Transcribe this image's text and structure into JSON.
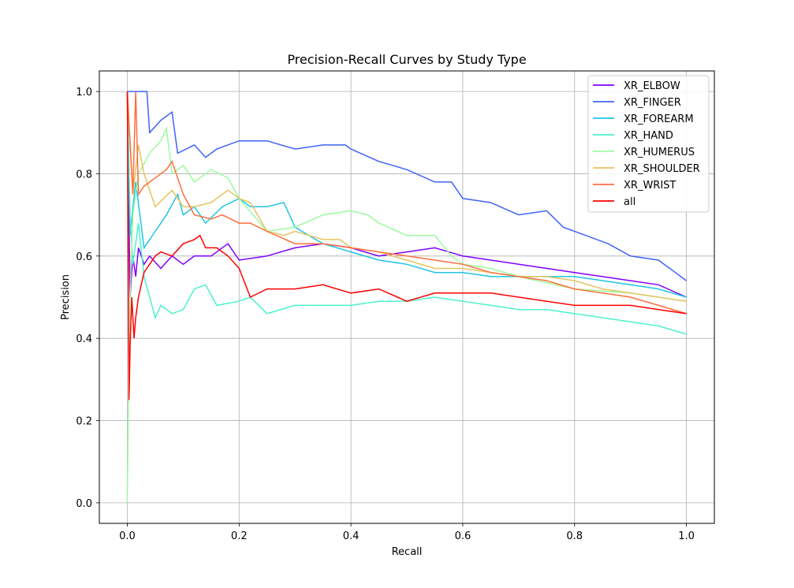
{
  "chart_data": {
    "type": "line",
    "title": "Precision-Recall Curves by Study Type",
    "xlabel": "Recall",
    "ylabel": "Precision",
    "xlim": [
      -0.05,
      1.05
    ],
    "ylim": [
      -0.05,
      1.05
    ],
    "xticks": [
      "0.0",
      "0.2",
      "0.4",
      "0.6",
      "0.8",
      "1.0"
    ],
    "yticks": [
      "0.0",
      "0.2",
      "0.4",
      "0.6",
      "0.8",
      "1.0"
    ],
    "grid": true,
    "legend_position": "top-right",
    "series": [
      {
        "name": "XR_ELBOW",
        "color": "#8000ff",
        "points": [
          [
            0.0,
            1.0
          ],
          [
            0.005,
            0.5
          ],
          [
            0.01,
            0.6
          ],
          [
            0.015,
            0.55
          ],
          [
            0.02,
            0.62
          ],
          [
            0.03,
            0.58
          ],
          [
            0.04,
            0.6
          ],
          [
            0.06,
            0.57
          ],
          [
            0.08,
            0.6
          ],
          [
            0.1,
            0.58
          ],
          [
            0.12,
            0.6
          ],
          [
            0.15,
            0.6
          ],
          [
            0.18,
            0.63
          ],
          [
            0.2,
            0.59
          ],
          [
            0.25,
            0.6
          ],
          [
            0.3,
            0.62
          ],
          [
            0.35,
            0.63
          ],
          [
            0.4,
            0.62
          ],
          [
            0.45,
            0.6
          ],
          [
            0.5,
            0.61
          ],
          [
            0.55,
            0.62
          ],
          [
            0.6,
            0.6
          ],
          [
            0.65,
            0.59
          ],
          [
            0.7,
            0.58
          ],
          [
            0.75,
            0.57
          ],
          [
            0.8,
            0.56
          ],
          [
            0.85,
            0.55
          ],
          [
            0.9,
            0.54
          ],
          [
            0.95,
            0.53
          ],
          [
            1.0,
            0.5
          ]
        ]
      },
      {
        "name": "XR_FINGER",
        "color": "#4062fa",
        "points": [
          [
            0.0,
            1.0
          ],
          [
            0.035,
            1.0
          ],
          [
            0.04,
            0.9
          ],
          [
            0.06,
            0.93
          ],
          [
            0.08,
            0.95
          ],
          [
            0.09,
            0.85
          ],
          [
            0.12,
            0.87
          ],
          [
            0.14,
            0.84
          ],
          [
            0.16,
            0.86
          ],
          [
            0.2,
            0.88
          ],
          [
            0.25,
            0.88
          ],
          [
            0.3,
            0.86
          ],
          [
            0.35,
            0.87
          ],
          [
            0.39,
            0.87
          ],
          [
            0.4,
            0.86
          ],
          [
            0.45,
            0.83
          ],
          [
            0.5,
            0.81
          ],
          [
            0.55,
            0.78
          ],
          [
            0.58,
            0.78
          ],
          [
            0.6,
            0.74
          ],
          [
            0.65,
            0.73
          ],
          [
            0.7,
            0.7
          ],
          [
            0.75,
            0.71
          ],
          [
            0.78,
            0.67
          ],
          [
            0.82,
            0.65
          ],
          [
            0.86,
            0.63
          ],
          [
            0.9,
            0.6
          ],
          [
            0.95,
            0.59
          ],
          [
            0.98,
            0.56
          ],
          [
            1.0,
            0.54
          ]
        ]
      },
      {
        "name": "XR_FOREARM",
        "color": "#1ec5e6",
        "points": [
          [
            0.0,
            1.0
          ],
          [
            0.005,
            0.65
          ],
          [
            0.015,
            0.78
          ],
          [
            0.03,
            0.62
          ],
          [
            0.05,
            0.66
          ],
          [
            0.07,
            0.7
          ],
          [
            0.09,
            0.75
          ],
          [
            0.1,
            0.7
          ],
          [
            0.12,
            0.72
          ],
          [
            0.14,
            0.68
          ],
          [
            0.17,
            0.72
          ],
          [
            0.2,
            0.74
          ],
          [
            0.22,
            0.72
          ],
          [
            0.25,
            0.72
          ],
          [
            0.28,
            0.73
          ],
          [
            0.3,
            0.67
          ],
          [
            0.35,
            0.63
          ],
          [
            0.4,
            0.61
          ],
          [
            0.45,
            0.59
          ],
          [
            0.5,
            0.58
          ],
          [
            0.55,
            0.56
          ],
          [
            0.6,
            0.56
          ],
          [
            0.65,
            0.55
          ],
          [
            0.7,
            0.55
          ],
          [
            0.75,
            0.55
          ],
          [
            0.8,
            0.55
          ],
          [
            0.85,
            0.54
          ],
          [
            0.9,
            0.53
          ],
          [
            0.95,
            0.52
          ],
          [
            1.0,
            0.5
          ]
        ]
      },
      {
        "name": "XR_HAND",
        "color": "#4cf2ce",
        "points": [
          [
            0.0,
            1.0
          ],
          [
            0.005,
            0.7
          ],
          [
            0.01,
            0.58
          ],
          [
            0.02,
            0.68
          ],
          [
            0.03,
            0.55
          ],
          [
            0.04,
            0.5
          ],
          [
            0.05,
            0.45
          ],
          [
            0.06,
            0.48
          ],
          [
            0.08,
            0.46
          ],
          [
            0.1,
            0.47
          ],
          [
            0.12,
            0.52
          ],
          [
            0.14,
            0.53
          ],
          [
            0.16,
            0.48
          ],
          [
            0.2,
            0.49
          ],
          [
            0.22,
            0.5
          ],
          [
            0.25,
            0.46
          ],
          [
            0.3,
            0.48
          ],
          [
            0.35,
            0.48
          ],
          [
            0.4,
            0.48
          ],
          [
            0.45,
            0.49
          ],
          [
            0.5,
            0.49
          ],
          [
            0.55,
            0.5
          ],
          [
            0.6,
            0.49
          ],
          [
            0.65,
            0.48
          ],
          [
            0.7,
            0.47
          ],
          [
            0.75,
            0.47
          ],
          [
            0.8,
            0.46
          ],
          [
            0.85,
            0.45
          ],
          [
            0.9,
            0.44
          ],
          [
            0.95,
            0.43
          ],
          [
            1.0,
            0.41
          ]
        ]
      },
      {
        "name": "XR_HUMERUS",
        "color": "#9cfb9f",
        "points": [
          [
            0.0,
            0.0
          ],
          [
            0.002,
            0.25
          ],
          [
            0.005,
            0.5
          ],
          [
            0.01,
            0.7
          ],
          [
            0.02,
            0.8
          ],
          [
            0.04,
            0.85
          ],
          [
            0.06,
            0.88
          ],
          [
            0.07,
            0.91
          ],
          [
            0.08,
            0.8
          ],
          [
            0.1,
            0.82
          ],
          [
            0.12,
            0.78
          ],
          [
            0.15,
            0.81
          ],
          [
            0.18,
            0.79
          ],
          [
            0.2,
            0.74
          ],
          [
            0.25,
            0.66
          ],
          [
            0.3,
            0.67
          ],
          [
            0.35,
            0.7
          ],
          [
            0.4,
            0.71
          ],
          [
            0.43,
            0.7
          ],
          [
            0.45,
            0.68
          ],
          [
            0.5,
            0.65
          ],
          [
            0.55,
            0.65
          ],
          [
            0.58,
            0.6
          ],
          [
            0.6,
            0.58
          ],
          [
            0.65,
            0.57
          ],
          [
            0.7,
            0.55
          ],
          [
            0.8,
            0.52
          ],
          [
            0.9,
            0.51
          ],
          [
            1.0,
            0.49
          ]
        ]
      },
      {
        "name": "XR_SHOULDER",
        "color": "#e6c35f",
        "points": [
          [
            0.0,
            1.0
          ],
          [
            0.01,
            0.75
          ],
          [
            0.02,
            0.87
          ],
          [
            0.03,
            0.8
          ],
          [
            0.05,
            0.72
          ],
          [
            0.08,
            0.76
          ],
          [
            0.1,
            0.72
          ],
          [
            0.12,
            0.72
          ],
          [
            0.15,
            0.73
          ],
          [
            0.18,
            0.76
          ],
          [
            0.2,
            0.74
          ],
          [
            0.22,
            0.73
          ],
          [
            0.25,
            0.66
          ],
          [
            0.28,
            0.65
          ],
          [
            0.3,
            0.66
          ],
          [
            0.35,
            0.64
          ],
          [
            0.38,
            0.64
          ],
          [
            0.4,
            0.62
          ],
          [
            0.45,
            0.61
          ],
          [
            0.5,
            0.59
          ],
          [
            0.55,
            0.57
          ],
          [
            0.6,
            0.57
          ],
          [
            0.65,
            0.56
          ],
          [
            0.7,
            0.55
          ],
          [
            0.75,
            0.55
          ],
          [
            0.8,
            0.54
          ],
          [
            0.85,
            0.52
          ],
          [
            0.9,
            0.51
          ],
          [
            1.0,
            0.49
          ]
        ]
      },
      {
        "name": "XR_WRIST",
        "color": "#ff6e3b",
        "points": [
          [
            0.0,
            1.0
          ],
          [
            0.01,
            0.75
          ],
          [
            0.015,
            1.0
          ],
          [
            0.02,
            0.75
          ],
          [
            0.03,
            0.77
          ],
          [
            0.05,
            0.79
          ],
          [
            0.07,
            0.81
          ],
          [
            0.08,
            0.83
          ],
          [
            0.1,
            0.75
          ],
          [
            0.12,
            0.7
          ],
          [
            0.15,
            0.69
          ],
          [
            0.17,
            0.7
          ],
          [
            0.2,
            0.68
          ],
          [
            0.22,
            0.68
          ],
          [
            0.25,
            0.66
          ],
          [
            0.3,
            0.63
          ],
          [
            0.35,
            0.63
          ],
          [
            0.4,
            0.62
          ],
          [
            0.45,
            0.61
          ],
          [
            0.5,
            0.6
          ],
          [
            0.55,
            0.59
          ],
          [
            0.6,
            0.58
          ],
          [
            0.65,
            0.56
          ],
          [
            0.7,
            0.55
          ],
          [
            0.75,
            0.54
          ],
          [
            0.8,
            0.52
          ],
          [
            0.85,
            0.51
          ],
          [
            0.9,
            0.5
          ],
          [
            0.95,
            0.48
          ],
          [
            1.0,
            0.46
          ]
        ]
      },
      {
        "name": "all",
        "color": "#ff0000",
        "points": [
          [
            0.0,
            1.0
          ],
          [
            0.003,
            0.25
          ],
          [
            0.005,
            0.38
          ],
          [
            0.008,
            0.5
          ],
          [
            0.012,
            0.4
          ],
          [
            0.015,
            0.45
          ],
          [
            0.02,
            0.5
          ],
          [
            0.03,
            0.56
          ],
          [
            0.04,
            0.58
          ],
          [
            0.05,
            0.6
          ],
          [
            0.06,
            0.61
          ],
          [
            0.08,
            0.6
          ],
          [
            0.1,
            0.63
          ],
          [
            0.12,
            0.64
          ],
          [
            0.13,
            0.65
          ],
          [
            0.14,
            0.62
          ],
          [
            0.16,
            0.62
          ],
          [
            0.18,
            0.6
          ],
          [
            0.2,
            0.57
          ],
          [
            0.22,
            0.5
          ],
          [
            0.25,
            0.52
          ],
          [
            0.3,
            0.52
          ],
          [
            0.35,
            0.53
          ],
          [
            0.4,
            0.51
          ],
          [
            0.45,
            0.52
          ],
          [
            0.5,
            0.49
          ],
          [
            0.55,
            0.51
          ],
          [
            0.6,
            0.51
          ],
          [
            0.65,
            0.51
          ],
          [
            0.7,
            0.5
          ],
          [
            0.75,
            0.49
          ],
          [
            0.8,
            0.48
          ],
          [
            0.85,
            0.48
          ],
          [
            0.9,
            0.48
          ],
          [
            0.95,
            0.47
          ],
          [
            1.0,
            0.46
          ]
        ]
      }
    ]
  }
}
